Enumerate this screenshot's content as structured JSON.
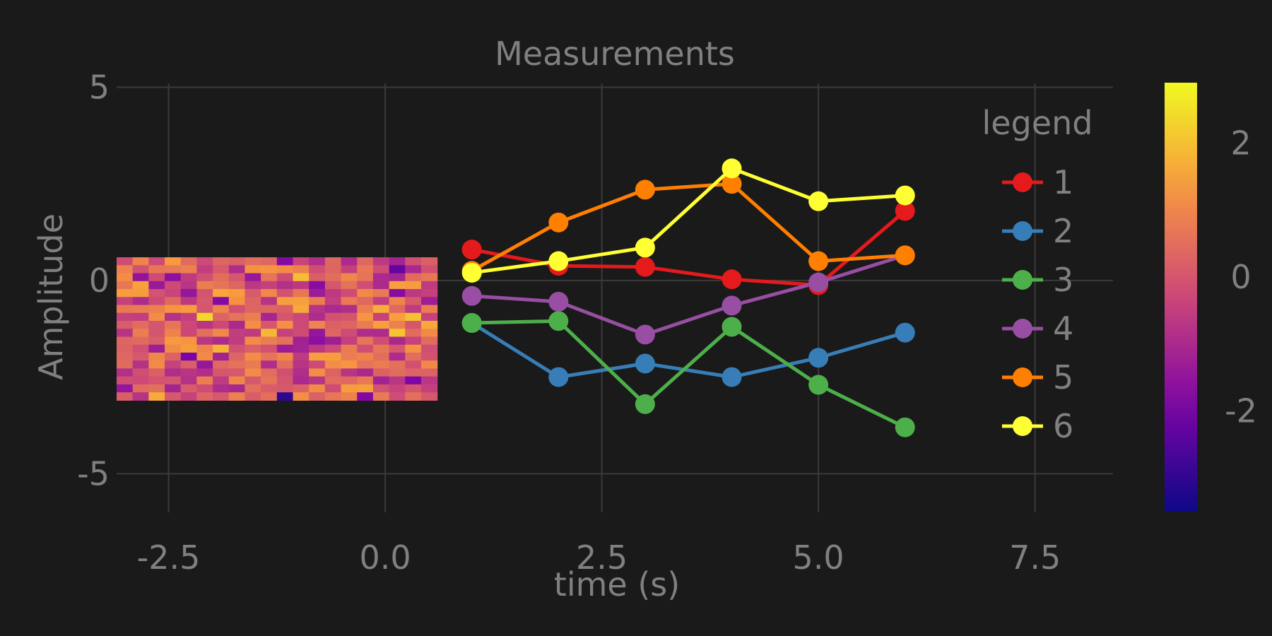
{
  "chart_data": {
    "type": "line",
    "title": "Measurements",
    "xlabel": "time (s)",
    "ylabel": "Amplitude",
    "xlim": [
      -3.1,
      8.4
    ],
    "ylim": [
      -6.0,
      5.1
    ],
    "xticks": [
      -2.5,
      0.0,
      2.5,
      5.0,
      7.5
    ],
    "xtick_labels": [
      "-2.5",
      "0.0",
      "2.5",
      "5.0",
      "7.5"
    ],
    "yticks": [
      5,
      0,
      -5
    ],
    "ytick_labels": [
      "5",
      "0",
      "-5"
    ],
    "grid": true,
    "legend": {
      "title": "legend",
      "placement": "top-right"
    },
    "x": [
      1,
      2,
      3,
      4,
      5,
      6
    ],
    "series": [
      {
        "name": "1",
        "color": "#e41a1c",
        "values": [
          0.8,
          0.38,
          0.35,
          0.03,
          -0.12,
          1.8
        ]
      },
      {
        "name": "2",
        "color": "#377eb8",
        "values": [
          -1.1,
          -2.5,
          -2.15,
          -2.5,
          -2.0,
          -1.35
        ]
      },
      {
        "name": "3",
        "color": "#4daf4a",
        "values": [
          -1.1,
          -1.05,
          -3.2,
          -1.2,
          -2.7,
          -3.8
        ]
      },
      {
        "name": "4",
        "color": "#984ea3",
        "values": [
          -0.4,
          -0.55,
          -1.4,
          -0.65,
          -0.05,
          0.65
        ]
      },
      {
        "name": "5",
        "color": "#ff7f00",
        "values": [
          0.25,
          1.5,
          2.35,
          2.5,
          0.5,
          0.65
        ]
      },
      {
        "name": "6",
        "color": "#ffff33",
        "values": [
          0.2,
          0.5,
          0.85,
          2.9,
          2.05,
          2.2
        ]
      }
    ],
    "heatmap": {
      "extent": {
        "x": [
          -3.1,
          0.6
        ],
        "y": [
          -3.1,
          0.6
        ]
      },
      "rows": 18,
      "cols": 20,
      "colormap": "plasma",
      "vmin": -3.5,
      "vmax": 2.9
    },
    "colorbar": {
      "ticks": [
        2,
        0,
        -2
      ],
      "tick_labels": [
        "2",
        "0",
        "-2"
      ]
    }
  }
}
